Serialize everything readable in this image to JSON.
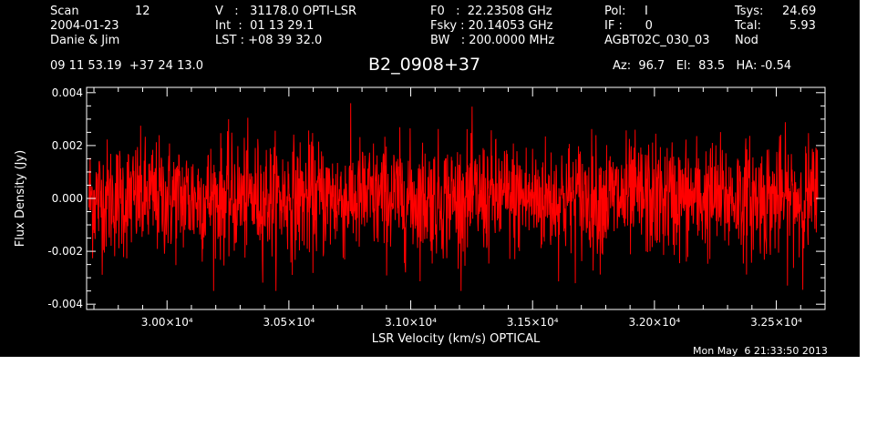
{
  "header": {
    "scan_label": "Scan",
    "scan_value": "12",
    "date": "2004-01-23",
    "observers": "Danie & Jim",
    "v_line": "V   :   31178.0 OPTI-LSR",
    "int_line": "Int  :  01 13 29.1",
    "lst_line": "LST : +08 39 32.0",
    "f0_line": "F0   :  22.23508 GHz",
    "fsky_line": "Fsky : 20.14053 GHz",
    "bw_line": "BW   : 200.0000 MHz",
    "pol_line": "Pol:     I",
    "if_line": "IF :      0",
    "project": "AGBT02C_030_03",
    "tsys_label": "Tsys:",
    "tsys_value": "24.69",
    "tcal_label": "Tcal:",
    "tcal_value": "5.93",
    "nod": "Nod",
    "coords": "09 11 53.19  +37 24 13.0",
    "source": "B2_0908+37",
    "az_el_ha": "Az:  96.7   El:  83.5   HA: -0.54",
    "timestamp": "Mon May  6 21:33:50 2013"
  },
  "chart_data": {
    "type": "line",
    "title": "B2_0908+37",
    "xlabel": "LSR Velocity (km/s) OPTICAL",
    "ylabel": "Flux Density (Jy)",
    "xlim": [
      29670,
      32700
    ],
    "ylim": [
      -0.0042,
      0.0042
    ],
    "x_ticks": [
      30000,
      30500,
      31000,
      31500,
      32000,
      32500
    ],
    "x_tick_labels": [
      "3.00×10⁴",
      "3.05×10⁴",
      "3.10×10⁴",
      "3.15×10⁴",
      "3.20×10⁴",
      "3.25×10⁴"
    ],
    "y_ticks": [
      -0.004,
      -0.002,
      0.0,
      0.002,
      0.004
    ],
    "y_tick_labels": [
      "-0.004",
      "-0.002",
      "0.000",
      "0.002",
      "0.004"
    ],
    "series": [
      {
        "color": "#ff0000",
        "x_start": 29680,
        "x_end": 32670,
        "mean": 0.0,
        "rms": 0.0011,
        "min": -0.0035,
        "max": 0.0038
      }
    ],
    "grid": false
  },
  "colors": {
    "background": "#000000",
    "foreground": "#ffffff",
    "series": "#ff0000"
  }
}
